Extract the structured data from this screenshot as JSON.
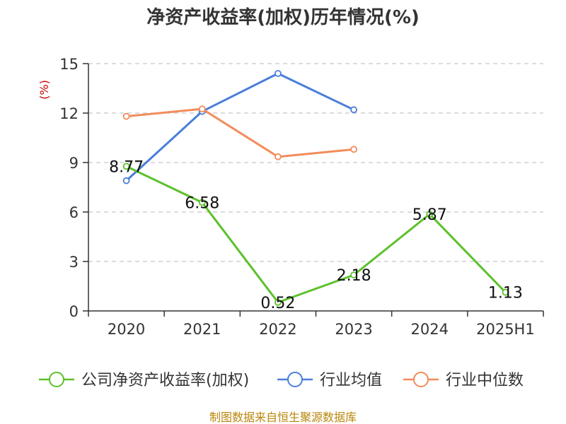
{
  "chart_data": {
    "type": "line",
    "title": "净资产收益率(加权)历年情况(%)",
    "ylabel": "(%)",
    "categories": [
      "2020",
      "2021",
      "2022",
      "2023",
      "2024",
      "2025H1"
    ],
    "yticks": [
      "0",
      "3",
      "6",
      "9",
      "12",
      "15"
    ],
    "ylim": [
      0,
      15
    ],
    "grid": true,
    "legend_position": "bottom",
    "series": [
      {
        "name": "公司净资产收益率(加权)",
        "color": "#5cc12b",
        "values": [
          8.77,
          6.58,
          0.52,
          2.18,
          5.87,
          1.13
        ],
        "labels": [
          "8.77",
          "6.58",
          "0.52",
          "2.18",
          "5.87",
          "1.13"
        ]
      },
      {
        "name": "行业均值",
        "color": "#4a7fd9",
        "values": [
          7.9,
          12.1,
          14.4,
          12.2,
          null,
          null
        ],
        "labels": []
      },
      {
        "name": "行业中位数",
        "color": "#f28c5a",
        "values": [
          11.8,
          12.25,
          9.35,
          9.8,
          null,
          null
        ],
        "labels": []
      }
    ],
    "source": "制图数据来自恒生聚源数据库"
  }
}
